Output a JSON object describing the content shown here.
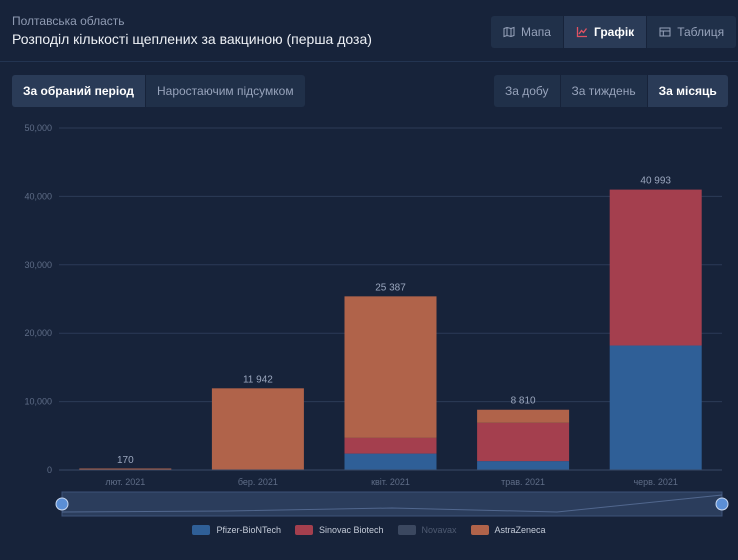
{
  "header": {
    "region": "Полтавська область",
    "title": "Розподіл кількості щеплених за вакциною (перша доза)"
  },
  "view_tabs": [
    {
      "label": "Мапа",
      "icon": "map-icon",
      "active": false
    },
    {
      "label": "Графік",
      "icon": "chart-icon",
      "active": true
    },
    {
      "label": "Таблиця",
      "icon": "table-icon",
      "active": false
    }
  ],
  "period_tabs": [
    {
      "label": "За обраний період",
      "active": true
    },
    {
      "label": "Наростаючим підсумком",
      "active": false
    }
  ],
  "interval_tabs": [
    {
      "label": "За добу",
      "active": false
    },
    {
      "label": "За тиждень",
      "active": false
    },
    {
      "label": "За місяць",
      "active": true
    }
  ],
  "colors": {
    "pfizer": "#2f5f97",
    "sinovac": "#a43f4e",
    "novavax": "#3b4860",
    "astrazeneca": "#b0634a",
    "accent": "#e05263"
  },
  "chart_data": {
    "type": "bar",
    "stacked": true,
    "categories": [
      "лют. 2021",
      "бер. 2021",
      "квіт. 2021",
      "трав. 2021",
      "черв. 2021"
    ],
    "totals": [
      "170",
      "11 942",
      "25 387",
      "8 810",
      "40 993"
    ],
    "series": [
      {
        "name": "Pfizer-BioNTech",
        "color": "#2f5f97",
        "values": [
          0,
          0,
          2400,
          1300,
          18200
        ]
      },
      {
        "name": "Sinovac Biotech",
        "color": "#a43f4e",
        "values": [
          0,
          0,
          2300,
          5600,
          22793
        ]
      },
      {
        "name": "Novavax",
        "color": "#3b4860",
        "values": [
          0,
          0,
          0,
          0,
          0
        ],
        "hidden": true
      },
      {
        "name": "AstraZeneca",
        "color": "#b0634a",
        "values": [
          170,
          11942,
          20687,
          1910,
          0
        ]
      }
    ],
    "yticks": [
      "0",
      "10,000",
      "20,000",
      "30,000",
      "40,000",
      "50,000"
    ],
    "ylim": [
      0,
      50000
    ],
    "grid": true,
    "legend": "bottom",
    "zoom_slider": true
  }
}
